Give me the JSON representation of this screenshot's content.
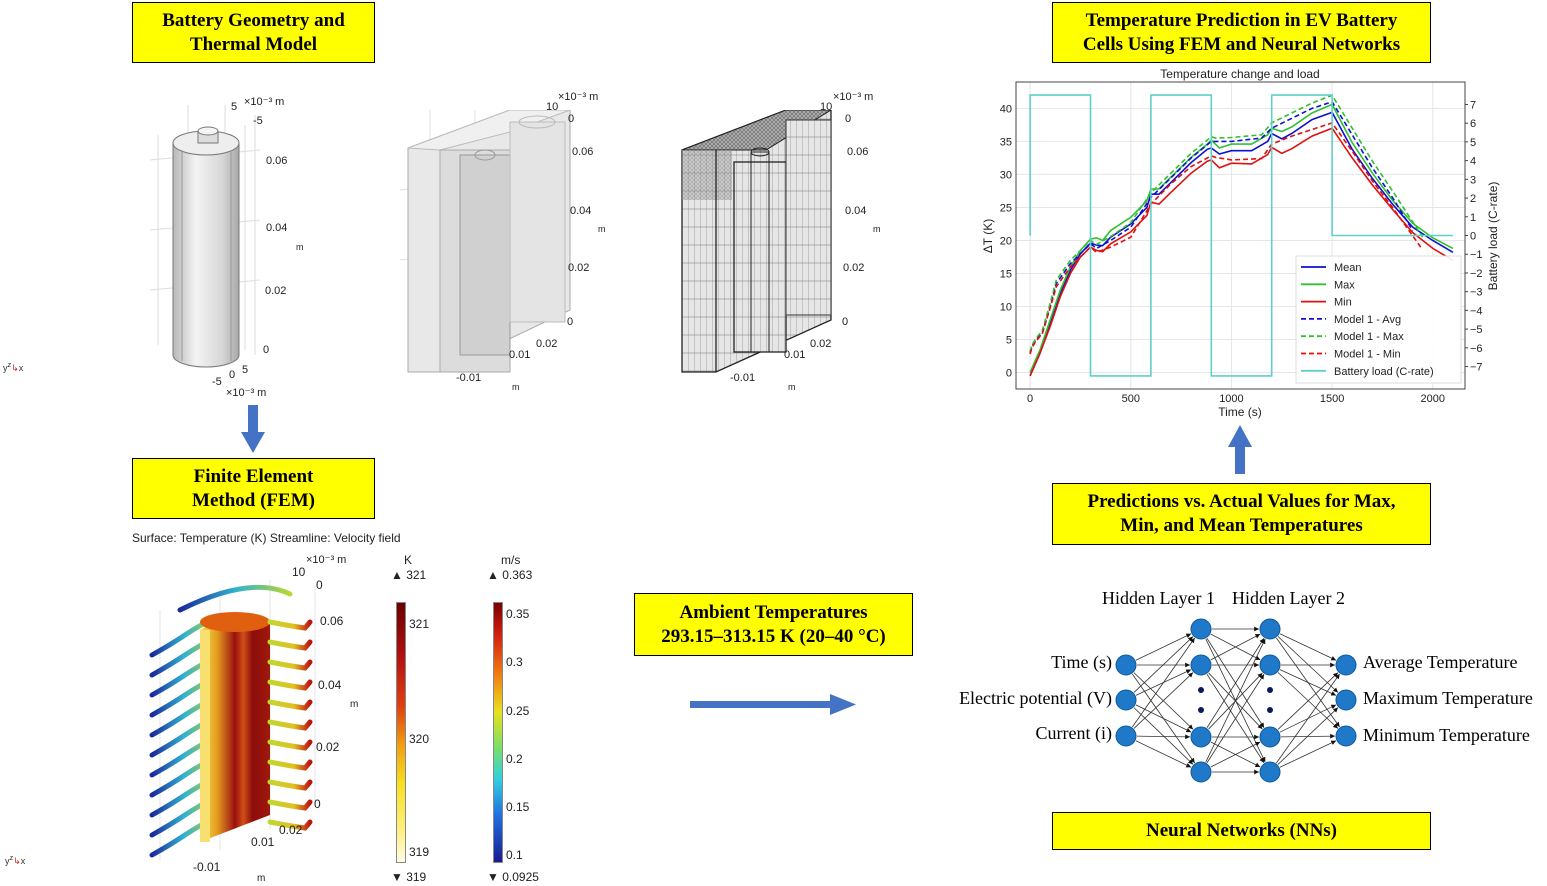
{
  "titles": {
    "geometry": "Battery Geometry and Thermal Model",
    "fem": "Finite Element Method (FEM)",
    "chart": "Temperature Prediction in EV Battery Cells Using FEM and Neural Networks",
    "predictions": "Predictions vs. Actual Values for Max, Min, and Mean Temperatures",
    "ambient_line1": "Ambient Temperatures",
    "ambient_line2": "293.15–313.15 K (20–40 °C)",
    "nn": "Neural Networks (NNs)"
  },
  "geometry": {
    "cell": {
      "scale_top": "×10⁻³ m",
      "top_ticks": [
        "5",
        "-5"
      ],
      "z_ticks": [
        "0.06",
        "0.04",
        "0.02",
        "0"
      ],
      "z_unit": "m",
      "bottom_ticks": [
        "-5",
        "0",
        "5"
      ],
      "scale_bottom": "×10⁻³ m"
    },
    "box": {
      "scale_top": "×10⁻³ m",
      "top_ticks": [
        "10",
        "0"
      ],
      "z_ticks": [
        "0.06",
        "0.04",
        "0.02",
        "0"
      ],
      "z_unit": "m",
      "bottom_ticks": [
        "-0.01",
        "0.01",
        "0.02"
      ],
      "bottom_unit": "m"
    },
    "mesh": {
      "scale_top": "×10⁻³ m",
      "top_ticks": [
        "10",
        "0"
      ],
      "z_ticks": [
        "0.06",
        "0.04",
        "0.02",
        "0"
      ],
      "z_unit": "m",
      "bottom_ticks": [
        "-0.01",
        "0.01",
        "0.02"
      ],
      "bottom_unit": "m"
    },
    "triad_labels": [
      "y",
      "z",
      "x"
    ]
  },
  "fem": {
    "caption": "Surface: Temperature (K)  Streamline: Velocity field",
    "scale_top": "×10⁻³ m",
    "top_ticks": [
      "10",
      "0"
    ],
    "z_ticks": [
      "0.06",
      "0.04",
      "0.02",
      "0"
    ],
    "z_unit": "m",
    "bottom_ticks": [
      "-0.01",
      "0.01",
      "0.02"
    ],
    "bottom_unit": "m",
    "temperature_bar": {
      "unit": "K",
      "max": "▲ 321",
      "min": "▼ 319",
      "ticks": [
        "321",
        "320",
        "319"
      ]
    },
    "velocity_bar": {
      "unit": "m/s",
      "max": "▲ 0.363",
      "min": "▼ 0.0925",
      "ticks": [
        "0.35",
        "0.3",
        "0.25",
        "0.2",
        "0.15",
        "0.1"
      ]
    },
    "triad_labels": [
      "y",
      "z",
      "x"
    ]
  },
  "colors": {
    "title_box": "#ffff00",
    "arrow": "#4472c4",
    "node": "#1f78c8",
    "mean": "#1010d0",
    "max": "#30c030",
    "min": "#e01010",
    "load": "#5fd0c8"
  },
  "neural_network": {
    "hidden_labels": [
      "Hidden Layer 1",
      "Hidden Layer 2"
    ],
    "inputs": [
      "Time (s)",
      "Electric potential (V)",
      "Current (i)"
    ],
    "outputs": [
      "Average Temperature",
      "Maximum Temperature",
      "Minimum Temperature"
    ]
  },
  "chart_data": {
    "type": "line",
    "title": "Temperature change and load",
    "xlabel": "Time (s)",
    "ylabel": "ΔT (K)",
    "y2label": "Battery load (C-rate)",
    "xlim": [
      -70,
      2160
    ],
    "ylim": [
      -2.5,
      44
    ],
    "y2lim": [
      -8.2,
      8.2
    ],
    "xticks": [
      0,
      500,
      1000,
      1500,
      2000
    ],
    "yticks": [
      0,
      5,
      10,
      15,
      20,
      25,
      30,
      35,
      40
    ],
    "y2ticks": [
      7,
      6,
      5,
      4,
      3,
      2,
      1,
      0,
      -1,
      -2,
      -3,
      -4,
      -5,
      -6,
      -7
    ],
    "grid": true,
    "legend_position": "lower-right",
    "series": [
      {
        "name": "Mean",
        "style": "solid",
        "color": "#1010d0",
        "axis": "left",
        "x": [
          0,
          50,
          100,
          150,
          200,
          250,
          300,
          330,
          360,
          400,
          500,
          580,
          600,
          640,
          700,
          800,
          880,
          900,
          940,
          1000,
          1100,
          1180,
          1200,
          1250,
          1300,
          1400,
          1500,
          1600,
          1700,
          1800,
          1900,
          2000,
          2100
        ],
        "y": [
          -0.5,
          3,
          7.5,
          12,
          15.5,
          18,
          19.6,
          19.3,
          19.2,
          20.5,
          22.5,
          25,
          27,
          27,
          28.8,
          31.8,
          33.8,
          34,
          33.1,
          33.6,
          33.6,
          35,
          36.2,
          35.4,
          36.2,
          38.3,
          39.4,
          33.8,
          29.4,
          25.5,
          22,
          20,
          18.2
        ]
      },
      {
        "name": "Max",
        "style": "solid",
        "color": "#30c030",
        "axis": "left",
        "x": [
          0,
          50,
          100,
          150,
          200,
          250,
          300,
          330,
          360,
          400,
          500,
          580,
          600,
          640,
          700,
          800,
          880,
          900,
          940,
          1000,
          1100,
          1180,
          1200,
          1250,
          1300,
          1400,
          1500,
          1600,
          1700,
          1800,
          1900,
          2000,
          2100
        ],
        "y": [
          0,
          3.5,
          8,
          12.5,
          16,
          18.5,
          20.2,
          20.4,
          20,
          21.5,
          23.5,
          26,
          27.8,
          27.8,
          29.6,
          32.6,
          34.6,
          35.2,
          34,
          34.6,
          34.6,
          36,
          37,
          36.5,
          37.2,
          39.3,
          40.6,
          34.8,
          30.2,
          26.1,
          22.6,
          20.4,
          18.8
        ]
      },
      {
        "name": "Min",
        "style": "solid",
        "color": "#e01010",
        "axis": "left",
        "x": [
          0,
          50,
          100,
          150,
          200,
          250,
          300,
          330,
          360,
          400,
          500,
          580,
          600,
          640,
          700,
          800,
          880,
          900,
          940,
          1000,
          1100,
          1180,
          1200,
          1250,
          1300,
          1400,
          1500,
          1600,
          1700,
          1800,
          1900,
          2000,
          2100
        ],
        "y": [
          -0.5,
          3,
          7,
          11.5,
          15,
          17.5,
          19,
          18.5,
          18.3,
          19.5,
          21.3,
          23.8,
          25.8,
          25.5,
          27.3,
          30.2,
          32,
          32.2,
          31,
          31.7,
          31.6,
          33,
          34.1,
          33.2,
          33.9,
          35.8,
          37,
          32.5,
          28.4,
          24.7,
          21.2,
          18.8,
          17
        ]
      },
      {
        "name": "Model 1 - Avg",
        "style": "dashed",
        "color": "#1010d0",
        "axis": "left",
        "x": [
          0,
          10,
          30,
          60,
          100,
          130,
          200,
          300,
          330,
          400,
          500,
          600,
          700,
          800,
          900,
          920,
          1000,
          1150,
          1200,
          1300,
          1400,
          1500,
          1600,
          1700,
          1800,
          1900
        ],
        "y": [
          3,
          4,
          5,
          6,
          10,
          13.5,
          16.5,
          19.5,
          18.8,
          20,
          22,
          26.5,
          29.5,
          32.5,
          35,
          35,
          35,
          35.5,
          37,
          38.5,
          40,
          41,
          36,
          31,
          26.5,
          21.5
        ]
      },
      {
        "name": "Model 1 - Max",
        "style": "dashed",
        "color": "#30c030",
        "axis": "left",
        "x": [
          0,
          10,
          30,
          60,
          100,
          130,
          200,
          300,
          330,
          400,
          500,
          600,
          700,
          800,
          900,
          920,
          1000,
          1150,
          1200,
          1300,
          1400,
          1500,
          1600,
          1700,
          1800,
          1950
        ],
        "y": [
          3.2,
          4.2,
          5.2,
          6.3,
          10.5,
          14,
          17,
          20,
          19.4,
          20.6,
          22.7,
          27.2,
          30.2,
          33.2,
          35.7,
          35.5,
          35.6,
          36,
          37.8,
          39.3,
          40.8,
          42,
          37,
          32,
          27.5,
          20.5
        ]
      },
      {
        "name": "Model 1 - Min",
        "style": "dashed",
        "color": "#e01010",
        "axis": "left",
        "x": [
          0,
          10,
          30,
          60,
          100,
          130,
          200,
          300,
          330,
          400,
          500,
          600,
          700,
          800,
          900,
          920,
          1000,
          1150,
          1200,
          1300,
          1400,
          1500,
          1600,
          1700,
          1800,
          1940
        ],
        "y": [
          2.8,
          3.8,
          4.8,
          5.8,
          9.8,
          13,
          16,
          19,
          18.2,
          19,
          20.5,
          25.5,
          28.6,
          31.2,
          32.8,
          32.6,
          32.2,
          32.4,
          34.6,
          35.8,
          36.8,
          37.8,
          33.5,
          29,
          25,
          19
        ]
      },
      {
        "name": "Battery load (C-rate)",
        "style": "solid",
        "color": "#5fd0c8",
        "axis": "right",
        "x": [
          0,
          0,
          300,
          300,
          600,
          600,
          900,
          900,
          1200,
          1200,
          1500,
          1500,
          2100
        ],
        "y": [
          0,
          7.5,
          7.5,
          -7.5,
          -7.5,
          7.5,
          7.5,
          -7.5,
          -7.5,
          7.5,
          7.5,
          0,
          0
        ]
      }
    ]
  }
}
